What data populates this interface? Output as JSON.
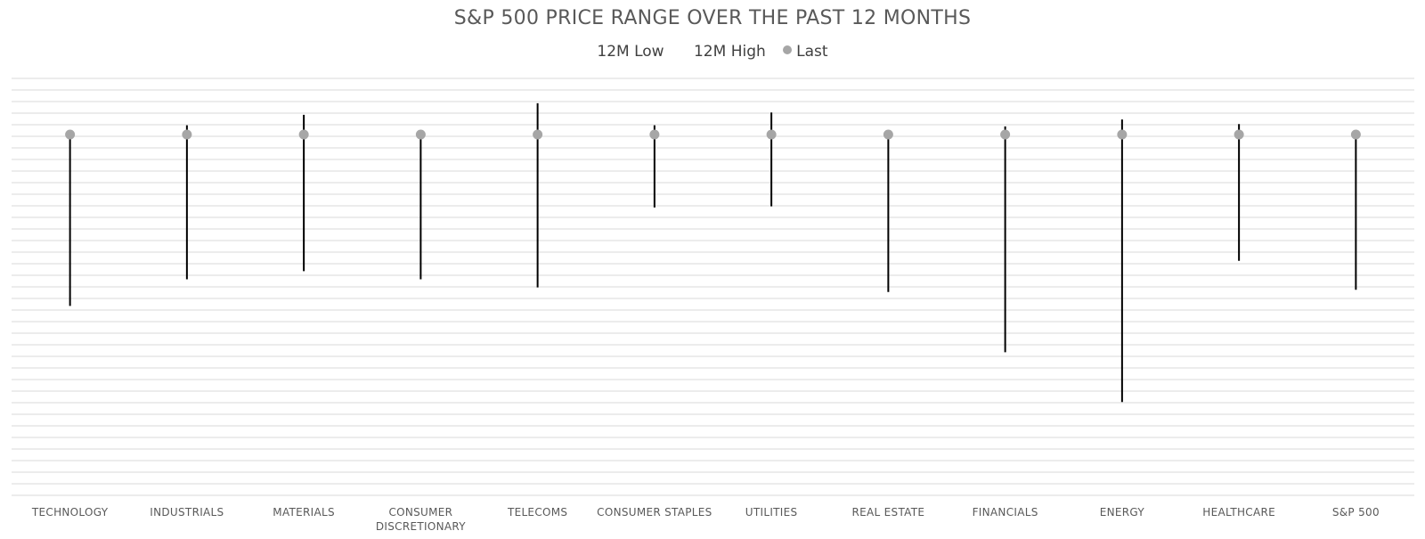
{
  "chart_data": {
    "type": "range-dot",
    "title": "S&P 500 PRICE RANGE OVER THE PAST 12 MONTHS",
    "legend": {
      "placement": "top",
      "items": [
        {
          "label": "12M Low",
          "marker": "none"
        },
        {
          "label": "12M High",
          "marker": "none"
        },
        {
          "label": "Last",
          "marker": "dot"
        }
      ]
    },
    "categories": [
      [
        "TECHNOLOGY"
      ],
      [
        "INDUSTRIALS"
      ],
      [
        "MATERIALS"
      ],
      [
        "CONSUMER",
        "DISCRETIONARY"
      ],
      [
        "TELECOMS"
      ],
      [
        "CONSUMER STAPLES"
      ],
      [
        "UTILITIES"
      ],
      [
        "REAL ESTATE"
      ],
      [
        "FINANCIALS"
      ],
      [
        "ENERGY"
      ],
      [
        "HEALTHCARE"
      ],
      [
        "S&P 500"
      ]
    ],
    "series": [
      {
        "name": "12M Low",
        "values": [
          -14.8,
          -12.5,
          -11.8,
          -12.5,
          -13.2,
          -6.3,
          -6.2,
          -13.6,
          -18.8,
          -23.1,
          -10.9,
          -13.4
        ]
      },
      {
        "name": "12M High",
        "values": [
          0.0,
          0.8,
          1.7,
          0.0,
          2.7,
          0.8,
          1.9,
          0.0,
          0.7,
          1.3,
          0.9,
          0.0
        ]
      },
      {
        "name": "Last",
        "values": [
          0,
          0,
          0,
          0,
          0,
          0,
          0,
          0,
          0,
          0,
          0,
          0
        ]
      }
    ],
    "grid": true,
    "colors": {
      "range_line": "#000000",
      "last_dot": "#a6a6a6",
      "grid": "#d9d9d9",
      "title": "#595959",
      "label": "#595959"
    }
  }
}
